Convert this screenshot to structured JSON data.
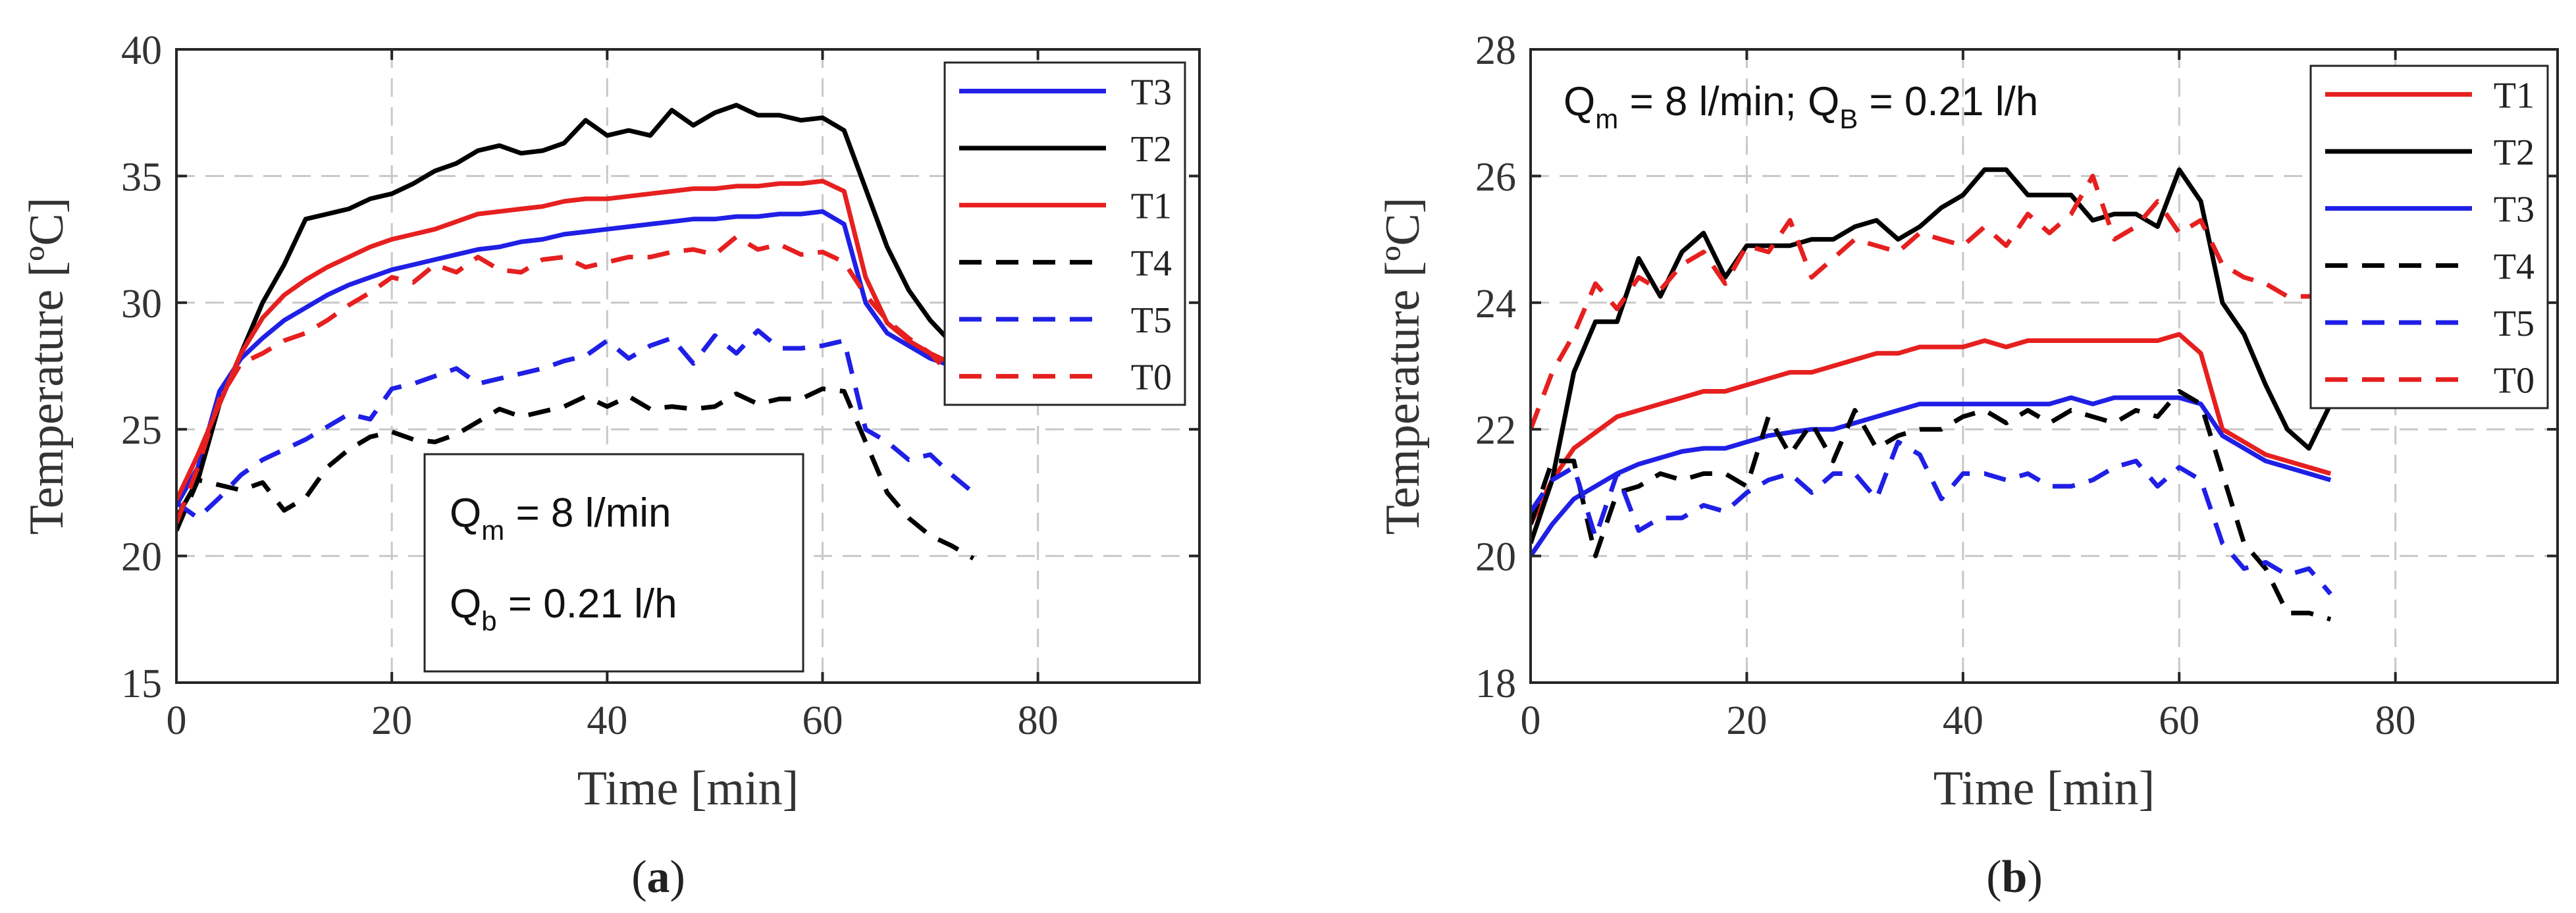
{
  "chart_data": [
    {
      "type": "line",
      "panel_label": "(a)",
      "panel_letter": "a",
      "xlabel": "Time [min]",
      "ylabel": "Temperature [ºC]",
      "xlim": [
        0,
        95
      ],
      "ylim": [
        15,
        40
      ],
      "xticks": [
        0,
        20,
        40,
        60,
        80
      ],
      "yticks": [
        15,
        20,
        25,
        30,
        35,
        40
      ],
      "grid": true,
      "legend_position": "top-right",
      "annotation": {
        "line1": {
          "q": "Q",
          "sub": "m",
          "text": " = 8 l/min"
        },
        "line2": {
          "q": "Q",
          "sub": "b",
          "text": " = 0.21 l/h"
        }
      },
      "series": [
        {
          "name": "T3",
          "color": "#1f1fe6",
          "dash": "solid",
          "x": [
            0,
            2,
            4,
            6,
            8,
            10,
            12,
            14,
            16,
            18,
            20,
            22,
            24,
            26,
            28,
            30,
            32,
            34,
            36,
            38,
            40,
            42,
            44,
            46,
            48,
            50,
            52,
            54,
            56,
            58,
            60,
            62,
            64,
            66,
            68,
            70,
            72,
            74
          ],
          "y": [
            22,
            23.5,
            26.5,
            27.8,
            28.6,
            29.3,
            29.8,
            30.3,
            30.7,
            31,
            31.3,
            31.5,
            31.7,
            31.9,
            32.1,
            32.2,
            32.4,
            32.5,
            32.7,
            32.8,
            32.9,
            33,
            33.1,
            33.2,
            33.3,
            33.3,
            33.4,
            33.4,
            33.5,
            33.5,
            33.6,
            33.1,
            30,
            28.8,
            28.3,
            27.8,
            27.5,
            27.2
          ]
        },
        {
          "name": "T2",
          "color": "#000000",
          "dash": "solid",
          "x": [
            0,
            2,
            4,
            6,
            8,
            10,
            12,
            14,
            16,
            18,
            20,
            22,
            24,
            26,
            28,
            30,
            32,
            34,
            36,
            38,
            40,
            42,
            44,
            46,
            48,
            50,
            52,
            54,
            56,
            58,
            60,
            62,
            64,
            66,
            68,
            70,
            72,
            74
          ],
          "y": [
            21.5,
            23,
            26,
            28,
            30,
            31.5,
            33.3,
            33.5,
            33.7,
            34.1,
            34.3,
            34.7,
            35.2,
            35.5,
            36,
            36.2,
            35.9,
            36,
            36.3,
            37.2,
            36.6,
            36.8,
            36.6,
            37.6,
            37,
            37.5,
            37.8,
            37.4,
            37.4,
            37.2,
            37.3,
            36.8,
            34.5,
            32.2,
            30.5,
            29.3,
            28.4,
            27.8
          ]
        },
        {
          "name": "T1",
          "color": "#e61f1f",
          "dash": "solid",
          "x": [
            0,
            2,
            4,
            6,
            8,
            10,
            12,
            14,
            16,
            18,
            20,
            22,
            24,
            26,
            28,
            30,
            32,
            34,
            36,
            38,
            40,
            42,
            44,
            46,
            48,
            50,
            52,
            54,
            56,
            58,
            60,
            62,
            64,
            66,
            68,
            70,
            72,
            74
          ],
          "y": [
            22.2,
            24,
            26,
            28,
            29.4,
            30.3,
            30.9,
            31.4,
            31.8,
            32.2,
            32.5,
            32.7,
            32.9,
            33.2,
            33.5,
            33.6,
            33.7,
            33.8,
            34,
            34.1,
            34.1,
            34.2,
            34.3,
            34.4,
            34.5,
            34.5,
            34.6,
            34.6,
            34.7,
            34.7,
            34.8,
            34.4,
            31,
            29.2,
            28.5,
            28,
            27.6,
            27.3
          ]
        },
        {
          "name": "T4",
          "color": "#000000",
          "dash": "dashed",
          "x": [
            0,
            2,
            4,
            6,
            8,
            10,
            12,
            14,
            16,
            18,
            20,
            22,
            24,
            26,
            28,
            30,
            32,
            34,
            36,
            38,
            40,
            42,
            44,
            46,
            48,
            50,
            52,
            54,
            56,
            58,
            60,
            62,
            64,
            66,
            68,
            70,
            72,
            74
          ],
          "y": [
            21,
            23,
            22.8,
            22.6,
            22.9,
            21.8,
            22.3,
            23.5,
            24.2,
            24.7,
            24.9,
            24.6,
            24.5,
            24.8,
            25.3,
            25.8,
            25.5,
            25.7,
            25.9,
            26.3,
            25.9,
            26.3,
            25.8,
            25.9,
            25.8,
            25.9,
            26.4,
            26,
            26.2,
            26.2,
            26.6,
            26.5,
            24.5,
            22.5,
            21.5,
            20.8,
            20.4,
            19.9
          ]
        },
        {
          "name": "T5",
          "color": "#1f1fe6",
          "dash": "dashed",
          "x": [
            0,
            2,
            4,
            6,
            8,
            10,
            12,
            14,
            16,
            18,
            20,
            22,
            24,
            26,
            28,
            30,
            32,
            34,
            36,
            38,
            40,
            42,
            44,
            46,
            48,
            50,
            52,
            54,
            56,
            58,
            60,
            62,
            64,
            66,
            68,
            70,
            72,
            74
          ],
          "y": [
            22.1,
            21.5,
            22.3,
            23.2,
            23.8,
            24.2,
            24.6,
            25.1,
            25.6,
            25.4,
            26.6,
            26.8,
            27.1,
            27.4,
            26.8,
            27,
            27.2,
            27.4,
            27.7,
            27.9,
            28.5,
            27.8,
            28.3,
            28.6,
            27.6,
            28.7,
            28,
            28.9,
            28.2,
            28.2,
            28.3,
            28.5,
            25,
            24.5,
            23.8,
            24,
            23.2,
            22.5
          ]
        },
        {
          "name": "T0",
          "color": "#e61f1f",
          "dash": "dashed",
          "x": [
            0,
            2,
            4,
            6,
            8,
            10,
            12,
            14,
            16,
            18,
            20,
            22,
            24,
            26,
            28,
            30,
            32,
            34,
            36,
            38,
            40,
            42,
            44,
            46,
            48,
            50,
            52,
            54,
            56,
            58,
            60,
            62,
            64,
            66,
            68,
            70,
            72,
            74
          ],
          "y": [
            21.3,
            23.5,
            26.2,
            27.6,
            28,
            28.5,
            28.8,
            29.3,
            29.9,
            30.4,
            31,
            30.8,
            31.5,
            31.2,
            31.8,
            31.3,
            31.2,
            31.7,
            31.8,
            31.4,
            31.6,
            31.8,
            31.8,
            32,
            32.1,
            31.9,
            32.6,
            32.1,
            32.3,
            31.9,
            32,
            31.6,
            30.3,
            29.3,
            28.6,
            28,
            27.1,
            26.4
          ]
        }
      ]
    },
    {
      "type": "line",
      "panel_label": "(b)",
      "panel_letter": "b",
      "xlabel": "Time [min]",
      "ylabel": "Temperature [ºC]",
      "xlim": [
        0,
        95
      ],
      "ylim": [
        18,
        28
      ],
      "xticks": [
        0,
        20,
        40,
        60,
        80
      ],
      "yticks": [
        18,
        20,
        22,
        24,
        26,
        28
      ],
      "grid": true,
      "legend_position": "top-right",
      "annotation": {
        "line1": {
          "q": "Q",
          "sub": "m",
          "text": " = 8 l/min; "
        },
        "line2": {
          "q": "Q",
          "sub": "B",
          "text": " = 0.21 l/h"
        }
      },
      "series": [
        {
          "name": "T1",
          "color": "#e61f1f",
          "dash": "solid",
          "x": [
            0,
            2,
            4,
            6,
            8,
            10,
            12,
            14,
            16,
            18,
            20,
            22,
            24,
            26,
            28,
            30,
            32,
            34,
            36,
            38,
            40,
            42,
            44,
            46,
            48,
            50,
            52,
            54,
            56,
            58,
            60,
            62,
            64,
            66,
            68,
            70,
            72,
            74
          ],
          "y": [
            20.5,
            21.2,
            21.7,
            21.95,
            22.2,
            22.3,
            22.4,
            22.5,
            22.6,
            22.6,
            22.7,
            22.8,
            22.9,
            22.9,
            23,
            23.1,
            23.2,
            23.2,
            23.3,
            23.3,
            23.3,
            23.4,
            23.3,
            23.4,
            23.4,
            23.4,
            23.4,
            23.4,
            23.4,
            23.4,
            23.5,
            23.2,
            22,
            21.8,
            21.6,
            21.5,
            21.4,
            21.3
          ]
        },
        {
          "name": "T2",
          "color": "#000000",
          "dash": "solid",
          "x": [
            0,
            2,
            4,
            6,
            8,
            10,
            12,
            14,
            16,
            18,
            20,
            22,
            24,
            26,
            28,
            30,
            32,
            34,
            36,
            38,
            40,
            42,
            44,
            46,
            48,
            50,
            52,
            54,
            56,
            58,
            60,
            62,
            64,
            66,
            68,
            70,
            72,
            74
          ],
          "y": [
            20.2,
            21.2,
            22.9,
            23.7,
            23.7,
            24.7,
            24.1,
            24.8,
            25.1,
            24.4,
            24.9,
            24.9,
            24.9,
            25,
            25,
            25.2,
            25.3,
            25,
            25.2,
            25.5,
            25.7,
            26.1,
            26.1,
            25.7,
            25.7,
            25.7,
            25.3,
            25.4,
            25.4,
            25.2,
            26.1,
            25.6,
            24,
            23.5,
            22.7,
            22,
            21.7,
            22.4
          ]
        },
        {
          "name": "T3",
          "color": "#1f1fe6",
          "dash": "solid",
          "x": [
            0,
            2,
            4,
            6,
            8,
            10,
            12,
            14,
            16,
            18,
            20,
            22,
            24,
            26,
            28,
            30,
            32,
            34,
            36,
            38,
            40,
            42,
            44,
            46,
            48,
            50,
            52,
            54,
            56,
            58,
            60,
            62,
            64,
            66,
            68,
            70,
            72,
            74
          ],
          "y": [
            20,
            20.5,
            20.9,
            21.1,
            21.3,
            21.45,
            21.55,
            21.65,
            21.7,
            21.7,
            21.8,
            21.9,
            21.95,
            22,
            22,
            22.1,
            22.2,
            22.3,
            22.4,
            22.4,
            22.4,
            22.4,
            22.4,
            22.4,
            22.4,
            22.5,
            22.4,
            22.5,
            22.5,
            22.5,
            22.5,
            22.4,
            21.9,
            21.7,
            21.5,
            21.4,
            21.3,
            21.2
          ]
        },
        {
          "name": "T4",
          "color": "#000000",
          "dash": "dashed",
          "x": [
            0,
            2,
            4,
            6,
            8,
            10,
            12,
            14,
            16,
            18,
            20,
            22,
            24,
            26,
            28,
            30,
            32,
            34,
            36,
            38,
            40,
            42,
            44,
            46,
            48,
            50,
            52,
            54,
            56,
            58,
            60,
            62,
            64,
            66,
            68,
            70,
            72,
            74
          ],
          "y": [
            20.5,
            21.5,
            21.5,
            20,
            21,
            21.1,
            21.3,
            21.2,
            21.3,
            21.3,
            21.1,
            22.2,
            21.6,
            22.1,
            21.5,
            22.3,
            21.7,
            21.9,
            22,
            22,
            22.2,
            22.3,
            22.1,
            22.3,
            22.1,
            22.3,
            22.2,
            22.1,
            22.3,
            22.2,
            22.6,
            22.4,
            21.3,
            20.2,
            19.8,
            19.1,
            19.1,
            19
          ]
        },
        {
          "name": "T5",
          "color": "#1f1fe6",
          "dash": "dashed",
          "x": [
            0,
            2,
            4,
            6,
            8,
            10,
            12,
            14,
            16,
            18,
            20,
            22,
            24,
            26,
            28,
            30,
            32,
            34,
            36,
            38,
            40,
            42,
            44,
            46,
            48,
            50,
            52,
            54,
            56,
            58,
            60,
            62,
            64,
            66,
            68,
            70,
            72,
            74
          ],
          "y": [
            20.7,
            21.2,
            21.4,
            20.3,
            21.3,
            20.4,
            20.6,
            20.6,
            20.8,
            20.7,
            21,
            21.2,
            21.3,
            21,
            21.3,
            21.3,
            20.9,
            21.8,
            21.6,
            20.9,
            21.3,
            21.3,
            21.2,
            21.3,
            21.1,
            21.1,
            21.2,
            21.4,
            21.5,
            21.1,
            21.4,
            21.2,
            20.2,
            19.8,
            19.9,
            19.7,
            19.8,
            19.4
          ]
        },
        {
          "name": "T0",
          "color": "#e61f1f",
          "dash": "dashed",
          "x": [
            0,
            2,
            4,
            6,
            8,
            10,
            12,
            14,
            16,
            18,
            20,
            22,
            24,
            26,
            28,
            30,
            32,
            34,
            36,
            38,
            40,
            42,
            44,
            46,
            48,
            50,
            52,
            54,
            56,
            58,
            60,
            62,
            64,
            66,
            68,
            70,
            72,
            74
          ],
          "y": [
            22,
            22.9,
            23.5,
            24.3,
            23.9,
            24.4,
            24.2,
            24.6,
            24.8,
            24.3,
            24.9,
            24.8,
            25.3,
            24.4,
            24.7,
            25,
            24.9,
            24.8,
            25.1,
            25,
            24.9,
            25.2,
            24.9,
            25.4,
            25.1,
            25.4,
            26,
            25,
            25.2,
            25.6,
            25.1,
            25.3,
            24.6,
            24.4,
            24.3,
            24.1,
            24.1,
            24.2
          ]
        }
      ]
    }
  ]
}
